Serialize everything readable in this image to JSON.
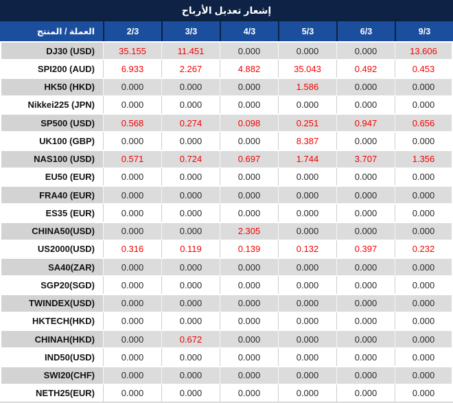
{
  "title": "إشعار تعديل الأرباح",
  "table": {
    "product_header": "العملة / المنتج",
    "dates": [
      "2/3",
      "3/3",
      "4/3",
      "5/3",
      "6/3",
      "9/3"
    ],
    "zero_value": "0.000",
    "rows": [
      {
        "name": "DJ30 (USD)",
        "values": [
          "35.155",
          "11.451",
          "0.000",
          "0.000",
          "0.000",
          "13.606"
        ]
      },
      {
        "name": "SPI200 (AUD)",
        "values": [
          "6.933",
          "2.267",
          "4.882",
          "35.043",
          "0.492",
          "0.453"
        ]
      },
      {
        "name": "HK50 (HKD)",
        "values": [
          "0.000",
          "0.000",
          "0.000",
          "1.586",
          "0.000",
          "0.000"
        ]
      },
      {
        "name": "Nikkei225 (JPN)",
        "values": [
          "0.000",
          "0.000",
          "0.000",
          "0.000",
          "0.000",
          "0.000"
        ]
      },
      {
        "name": "SP500 (USD)",
        "values": [
          "0.568",
          "0.274",
          "0.098",
          "0.251",
          "0.947",
          "0.656"
        ]
      },
      {
        "name": "UK100 (GBP)",
        "values": [
          "0.000",
          "0.000",
          "0.000",
          "8.387",
          "0.000",
          "0.000"
        ]
      },
      {
        "name": "NAS100 (USD)",
        "values": [
          "0.571",
          "0.724",
          "0.697",
          "1.744",
          "3.707",
          "1.356"
        ]
      },
      {
        "name": "EU50 (EUR)",
        "values": [
          "0.000",
          "0.000",
          "0.000",
          "0.000",
          "0.000",
          "0.000"
        ]
      },
      {
        "name": "FRA40 (EUR)",
        "values": [
          "0.000",
          "0.000",
          "0.000",
          "0.000",
          "0.000",
          "0.000"
        ]
      },
      {
        "name": "ES35 (EUR)",
        "values": [
          "0.000",
          "0.000",
          "0.000",
          "0.000",
          "0.000",
          "0.000"
        ]
      },
      {
        "name": "CHINA50(USD)",
        "values": [
          "0.000",
          "0.000",
          "2.305",
          "0.000",
          "0.000",
          "0.000"
        ]
      },
      {
        "name": "US2000(USD)",
        "values": [
          "0.316",
          "0.119",
          "0.139",
          "0.132",
          "0.397",
          "0.232"
        ]
      },
      {
        "name": "SA40(ZAR)",
        "values": [
          "0.000",
          "0.000",
          "0.000",
          "0.000",
          "0.000",
          "0.000"
        ]
      },
      {
        "name": "SGP20(SGD)",
        "values": [
          "0.000",
          "0.000",
          "0.000",
          "0.000",
          "0.000",
          "0.000"
        ]
      },
      {
        "name": "TWINDEX(USD)",
        "values": [
          "0.000",
          "0.000",
          "0.000",
          "0.000",
          "0.000",
          "0.000"
        ]
      },
      {
        "name": "HKTECH(HKD)",
        "values": [
          "0.000",
          "0.000",
          "0.000",
          "0.000",
          "0.000",
          "0.000"
        ]
      },
      {
        "name": "CHINAH(HKD)",
        "values": [
          "0.000",
          "0.672",
          "0.000",
          "0.000",
          "0.000",
          "0.000"
        ]
      },
      {
        "name": "IND50(USD)",
        "values": [
          "0.000",
          "0.000",
          "0.000",
          "0.000",
          "0.000",
          "0.000"
        ]
      },
      {
        "name": "SWI20(CHF)",
        "values": [
          "0.000",
          "0.000",
          "0.000",
          "0.000",
          "0.000",
          "0.000"
        ]
      },
      {
        "name": "NETH25(EUR)",
        "values": [
          "0.000",
          "0.000",
          "0.000",
          "0.000",
          "0.000",
          "0.000"
        ]
      }
    ]
  },
  "colors": {
    "title_bar": "#0d2244",
    "header_row": "#1b4f9e",
    "stripe_gray": "#dcdcdc",
    "stripe_name_gray": "#d3d3d3",
    "zero_text": "#282828",
    "nonzero_text": "#f30000"
  }
}
